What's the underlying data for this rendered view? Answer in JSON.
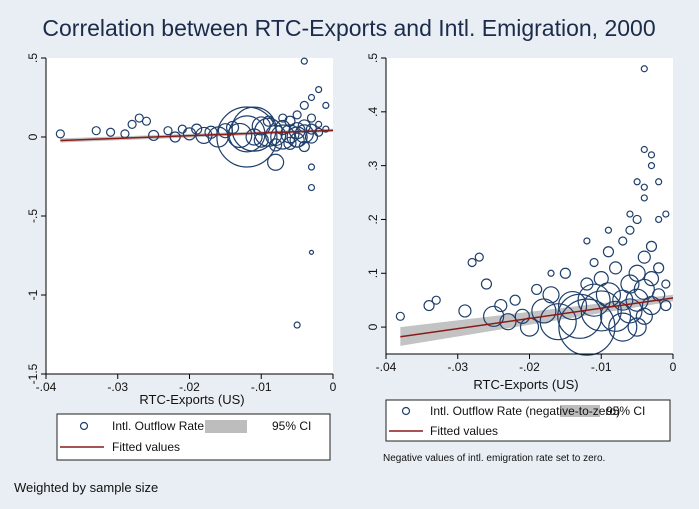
{
  "title": "Correlation between RTC-Exports and Intl. Emigration, 2000",
  "footnote": "Weighted by sample size",
  "colors": {
    "background": "#e8eef3",
    "plot_bg": "#ffffff",
    "marker": "#1f3f6b",
    "fit": "#8b1a1a",
    "ci": "#bdbdbd",
    "title": "#1b2b4a"
  },
  "chart_data": [
    {
      "type": "scatter",
      "xlabel": "RTC-Exports (US)",
      "ylabel": "",
      "xlim": [
        -0.04,
        0
      ],
      "ylim": [
        -1.5,
        0.5
      ],
      "x_ticks": [
        -0.04,
        -0.03,
        -0.02,
        -0.01,
        0
      ],
      "x_tick_labels": [
        "-.04",
        "-.03",
        "-.02",
        "-.01",
        "0"
      ],
      "y_ticks": [
        -1.5,
        -1,
        -0.5,
        0,
        0.5
      ],
      "y_tick_labels": [
        "-1.5",
        "-1",
        "-.5",
        "0",
        ".5"
      ],
      "grid": false,
      "legend": {
        "position": "bottom",
        "entries": [
          "Intl. Outflow Rate",
          "95% CI",
          "Fitted values"
        ]
      },
      "series": [
        {
          "name": "Intl. Outflow Rate",
          "kind": "hollow-circle",
          "points": [
            [
              -0.038,
              0.02,
              4
            ],
            [
              -0.033,
              0.04,
              4
            ],
            [
              -0.031,
              0.03,
              4
            ],
            [
              -0.029,
              0.02,
              4
            ],
            [
              -0.028,
              0.08,
              4
            ],
            [
              -0.027,
              0.12,
              4
            ],
            [
              -0.026,
              0.1,
              4
            ],
            [
              -0.025,
              0.01,
              5
            ],
            [
              -0.023,
              0.04,
              4
            ],
            [
              -0.022,
              0.0,
              5
            ],
            [
              -0.021,
              0.05,
              4
            ],
            [
              -0.02,
              0.02,
              6
            ],
            [
              -0.019,
              0.05,
              5
            ],
            [
              -0.018,
              0.01,
              8
            ],
            [
              -0.017,
              0.03,
              6
            ],
            [
              -0.016,
              0.0,
              10
            ],
            [
              -0.015,
              0.04,
              7
            ],
            [
              -0.014,
              0.06,
              6
            ],
            [
              -0.013,
              0.01,
              12
            ],
            [
              -0.012,
              0.02,
              18
            ],
            [
              -0.011,
              0.05,
              22
            ],
            [
              -0.011,
              0.0,
              8
            ],
            [
              -0.01,
              0.07,
              9
            ],
            [
              -0.01,
              -0.02,
              7
            ],
            [
              -0.009,
              0.03,
              14
            ],
            [
              -0.009,
              0.1,
              5
            ],
            [
              -0.008,
              0.01,
              10
            ],
            [
              -0.008,
              -0.05,
              6
            ],
            [
              -0.008,
              -0.16,
              8
            ],
            [
              -0.007,
              0.06,
              7
            ],
            [
              -0.007,
              0.0,
              12
            ],
            [
              -0.007,
              0.12,
              4
            ],
            [
              -0.006,
              0.02,
              9
            ],
            [
              -0.006,
              0.1,
              5
            ],
            [
              -0.006,
              -0.04,
              6
            ],
            [
              -0.005,
              0.04,
              8
            ],
            [
              -0.005,
              0.14,
              4
            ],
            [
              -0.005,
              -0.02,
              7
            ],
            [
              -0.005,
              0.0,
              10
            ],
            [
              -0.004,
              0.07,
              6
            ],
            [
              -0.004,
              0.2,
              4
            ],
            [
              -0.004,
              -0.06,
              5
            ],
            [
              -0.004,
              0.02,
              9
            ],
            [
              -0.003,
              0.05,
              5
            ],
            [
              -0.003,
              0.12,
              4
            ],
            [
              -0.003,
              0.0,
              6
            ],
            [
              -0.003,
              0.25,
              3
            ],
            [
              -0.002,
              0.03,
              4
            ],
            [
              -0.002,
              0.08,
              3
            ],
            [
              -0.001,
              0.05,
              3
            ],
            [
              -0.002,
              0.3,
              3
            ],
            [
              -0.004,
              0.48,
              3
            ],
            [
              -0.003,
              -0.19,
              3
            ],
            [
              -0.003,
              -0.32,
              3
            ],
            [
              -0.003,
              -0.73,
              2
            ],
            [
              -0.005,
              -1.19,
              3
            ],
            [
              -0.012,
              0.0,
              30
            ],
            [
              -0.001,
              0.2,
              3
            ]
          ]
        },
        {
          "name": "Fitted values",
          "kind": "line",
          "x": [
            -0.038,
            0
          ],
          "y": [
            -0.022,
            0.042
          ]
        },
        {
          "name": "95% CI",
          "kind": "band",
          "x": [
            -0.038,
            0
          ],
          "lower": [
            -0.035,
            0.032
          ],
          "upper": [
            -0.009,
            0.052
          ]
        }
      ]
    },
    {
      "type": "scatter",
      "xlabel": "RTC-Exports (US)",
      "ylabel": "",
      "xlim": [
        -0.04,
        0
      ],
      "ylim": [
        -0.05,
        0.5
      ],
      "x_ticks": [
        -0.04,
        -0.03,
        -0.02,
        -0.01,
        0
      ],
      "x_tick_labels": [
        "-.04",
        "-.03",
        "-.02",
        "-.01",
        "0"
      ],
      "y_ticks": [
        0,
        0.1,
        0.2,
        0.3,
        0.4,
        0.5
      ],
      "y_tick_labels": [
        "0",
        ".1",
        ".2",
        ".3",
        ".4",
        ".5"
      ],
      "grid": false,
      "legend": {
        "position": "bottom",
        "entries": [
          "Intl. Outflow Rate (negative-to-zero)",
          "95% CI",
          "Fitted values"
        ]
      },
      "note": "Negative values of intl. emigration rate set to zero.",
      "series": [
        {
          "name": "Intl. Outflow Rate (negative-to-zero)",
          "kind": "hollow-circle",
          "points": [
            [
              -0.038,
              0.02,
              4
            ],
            [
              -0.034,
              0.04,
              5
            ],
            [
              -0.033,
              0.05,
              4
            ],
            [
              -0.029,
              0.03,
              6
            ],
            [
              -0.028,
              0.12,
              4
            ],
            [
              -0.027,
              0.13,
              4
            ],
            [
              -0.026,
              0.08,
              5
            ],
            [
              -0.025,
              0.02,
              10
            ],
            [
              -0.024,
              0.04,
              6
            ],
            [
              -0.023,
              0.01,
              8
            ],
            [
              -0.022,
              0.05,
              5
            ],
            [
              -0.021,
              0.02,
              7
            ],
            [
              -0.02,
              0.0,
              9
            ],
            [
              -0.019,
              0.07,
              5
            ],
            [
              -0.018,
              0.03,
              12
            ],
            [
              -0.017,
              0.06,
              8
            ],
            [
              -0.016,
              0.01,
              18
            ],
            [
              -0.015,
              0.1,
              5
            ],
            [
              -0.014,
              0.04,
              14
            ],
            [
              -0.013,
              0.02,
              22
            ],
            [
              -0.012,
              0.08,
              6
            ],
            [
              -0.012,
              0.0,
              28
            ],
            [
              -0.011,
              0.05,
              16
            ],
            [
              -0.011,
              0.12,
              4
            ],
            [
              -0.01,
              0.03,
              20
            ],
            [
              -0.01,
              0.09,
              7
            ],
            [
              -0.009,
              0.06,
              12
            ],
            [
              -0.009,
              0.14,
              5
            ],
            [
              -0.008,
              0.02,
              15
            ],
            [
              -0.008,
              0.11,
              6
            ],
            [
              -0.007,
              0.05,
              10
            ],
            [
              -0.007,
              0.16,
              4
            ],
            [
              -0.007,
              0.0,
              14
            ],
            [
              -0.006,
              0.08,
              9
            ],
            [
              -0.006,
              0.18,
              4
            ],
            [
              -0.006,
              0.03,
              12
            ],
            [
              -0.005,
              0.1,
              8
            ],
            [
              -0.005,
              0.2,
              4
            ],
            [
              -0.005,
              0.05,
              11
            ],
            [
              -0.005,
              0.0,
              9
            ],
            [
              -0.004,
              0.13,
              6
            ],
            [
              -0.004,
              0.24,
              3
            ],
            [
              -0.004,
              0.07,
              10
            ],
            [
              -0.004,
              0.02,
              8
            ],
            [
              -0.003,
              0.15,
              5
            ],
            [
              -0.003,
              0.3,
              3
            ],
            [
              -0.003,
              0.09,
              7
            ],
            [
              -0.003,
              0.04,
              9
            ],
            [
              -0.002,
              0.11,
              5
            ],
            [
              -0.002,
              0.06,
              6
            ],
            [
              -0.002,
              0.2,
              3
            ],
            [
              -0.001,
              0.08,
              4
            ],
            [
              -0.001,
              0.04,
              5
            ],
            [
              -0.004,
              0.48,
              3
            ],
            [
              -0.004,
              0.33,
              3
            ],
            [
              -0.003,
              0.32,
              3
            ],
            [
              -0.005,
              0.27,
              3
            ],
            [
              -0.002,
              0.27,
              3
            ],
            [
              -0.001,
              0.21,
              3
            ],
            [
              -0.006,
              0.21,
              3
            ],
            [
              -0.009,
              0.18,
              3
            ],
            [
              -0.004,
              0.26,
              3
            ],
            [
              -0.012,
              0.16,
              3
            ],
            [
              -0.017,
              0.1,
              3
            ]
          ]
        },
        {
          "name": "Fitted values",
          "kind": "line",
          "x": [
            -0.038,
            0
          ],
          "y": [
            -0.018,
            0.054
          ]
        },
        {
          "name": "95% CI",
          "kind": "band",
          "x": [
            -0.038,
            0
          ],
          "lower": [
            -0.035,
            0.048
          ],
          "upper": [
            0.0,
            0.06
          ]
        }
      ]
    }
  ]
}
